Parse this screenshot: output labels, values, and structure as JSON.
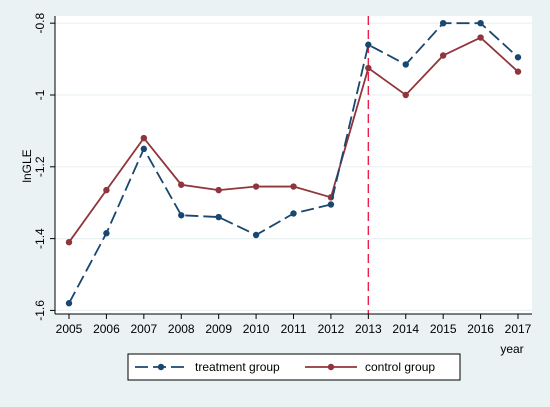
{
  "chart_data": {
    "type": "line",
    "x": [
      "2005",
      "2006",
      "2007",
      "2008",
      "2009",
      "2010",
      "2011",
      "2012",
      "2013",
      "2014",
      "2015",
      "2016",
      "2017"
    ],
    "series": [
      {
        "name": "treatment group",
        "color": "#1a476f",
        "dash": "dashed",
        "marker": "circle",
        "values": [
          -1.58,
          -1.385,
          -1.15,
          -1.335,
          -1.34,
          -1.39,
          -1.33,
          -1.305,
          -0.86,
          -0.915,
          -0.8,
          -0.8,
          -0.895
        ]
      },
      {
        "name": "control group",
        "color": "#90353b",
        "dash": "solid",
        "marker": "circle",
        "values": [
          -1.41,
          -1.265,
          -1.12,
          -1.25,
          -1.265,
          -1.255,
          -1.255,
          -1.285,
          -0.925,
          -1.0,
          -0.89,
          -0.84,
          -0.935
        ]
      }
    ],
    "ylabel": "lnGLE",
    "xlabel": "year",
    "yticks": [
      -1.6,
      -1.4,
      -1.2,
      -1,
      -0.8
    ],
    "ytick_labels": [
      "-1.6",
      "-1.4",
      "-1.2",
      "-1",
      "-0.8"
    ],
    "ylim": [
      -1.61,
      -0.78
    ],
    "vline": {
      "x": "2013",
      "color": "#e8204a",
      "style": "dashed"
    },
    "grid": true,
    "legend": "bottom"
  }
}
